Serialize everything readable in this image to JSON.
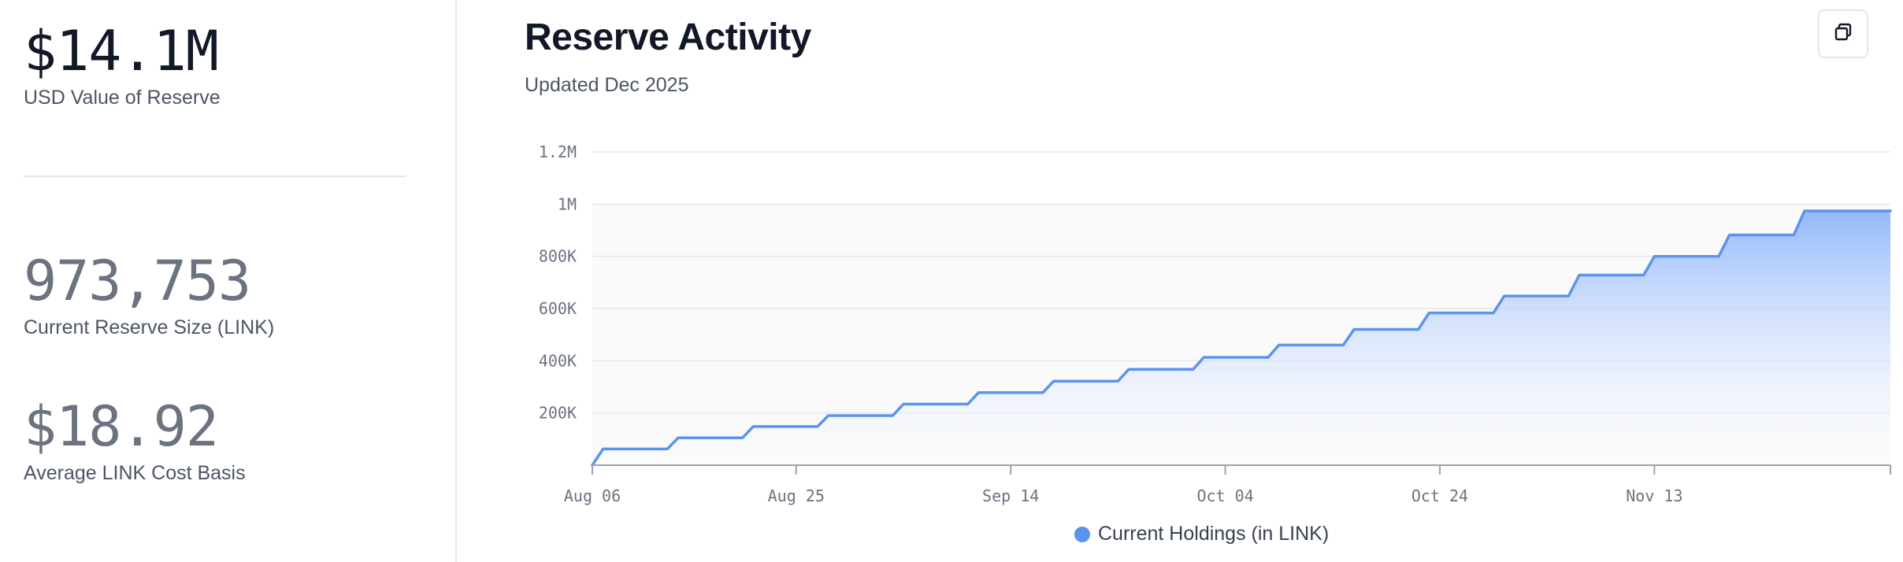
{
  "stats": [
    {
      "value": "$14.1M",
      "label": "USD Value of Reserve"
    },
    {
      "value": "973,753",
      "label": "Current Reserve Size (LINK)"
    },
    {
      "value": "$18.92",
      "label": "Average LINK Cost Basis"
    }
  ],
  "header": {
    "title": "Reserve Activity",
    "subtitle": "Updated Dec 2025"
  },
  "toolbar": {
    "copy_icon": "copy-icon"
  },
  "colors": {
    "line": "#5b94ee",
    "fill_top": "#8fb5fb",
    "fill_bottom": "#ffffff",
    "legend_dot": "#5b94ee",
    "grid": "#e5e7eb",
    "axis": "#9ca3af"
  },
  "chart_data": {
    "type": "area",
    "ylim": [
      0,
      1200000
    ],
    "yticks": [
      {
        "value": 200000,
        "label": "200K"
      },
      {
        "value": 400000,
        "label": "400K"
      },
      {
        "value": 600000,
        "label": "600K"
      },
      {
        "value": 800000,
        "label": "800K"
      },
      {
        "value": 1000000,
        "label": "1M"
      },
      {
        "value": 1200000,
        "label": "1.2M"
      }
    ],
    "xlim": [
      "2025-08-06",
      "2025-12-05"
    ],
    "xticks": [
      {
        "date": "2025-08-06",
        "label": "Aug 06"
      },
      {
        "date": "2025-08-25",
        "label": "Aug 25"
      },
      {
        "date": "2025-09-14",
        "label": "Sep 14"
      },
      {
        "date": "2025-10-04",
        "label": "Oct 04"
      },
      {
        "date": "2025-10-24",
        "label": "Oct 24"
      },
      {
        "date": "2025-11-13",
        "label": "Nov 13"
      }
    ],
    "legend": {
      "position": "bottom-center"
    },
    "grid": true,
    "series": [
      {
        "name": "Current Holdings (in LINK)",
        "points": [
          {
            "date": "2025-08-06",
            "value": 0
          },
          {
            "date": "2025-08-07",
            "value": 62000
          },
          {
            "date": "2025-08-13",
            "value": 62000
          },
          {
            "date": "2025-08-14",
            "value": 105000
          },
          {
            "date": "2025-08-20",
            "value": 105000
          },
          {
            "date": "2025-08-21",
            "value": 148000
          },
          {
            "date": "2025-08-27",
            "value": 148000
          },
          {
            "date": "2025-08-28",
            "value": 190000
          },
          {
            "date": "2025-09-03",
            "value": 190000
          },
          {
            "date": "2025-09-04",
            "value": 234000
          },
          {
            "date": "2025-09-10",
            "value": 234000
          },
          {
            "date": "2025-09-11",
            "value": 278000
          },
          {
            "date": "2025-09-17",
            "value": 278000
          },
          {
            "date": "2025-09-18",
            "value": 322000
          },
          {
            "date": "2025-09-24",
            "value": 322000
          },
          {
            "date": "2025-09-25",
            "value": 367000
          },
          {
            "date": "2025-10-01",
            "value": 367000
          },
          {
            "date": "2025-10-02",
            "value": 413000
          },
          {
            "date": "2025-10-08",
            "value": 413000
          },
          {
            "date": "2025-10-09",
            "value": 460000
          },
          {
            "date": "2025-10-15",
            "value": 460000
          },
          {
            "date": "2025-10-16",
            "value": 520000
          },
          {
            "date": "2025-10-22",
            "value": 520000
          },
          {
            "date": "2025-10-23",
            "value": 583000
          },
          {
            "date": "2025-10-29",
            "value": 583000
          },
          {
            "date": "2025-10-30",
            "value": 648000
          },
          {
            "date": "2025-11-05",
            "value": 648000
          },
          {
            "date": "2025-11-06",
            "value": 728000
          },
          {
            "date": "2025-11-12",
            "value": 728000
          },
          {
            "date": "2025-11-13",
            "value": 800000
          },
          {
            "date": "2025-11-19",
            "value": 800000
          },
          {
            "date": "2025-11-20",
            "value": 882000
          },
          {
            "date": "2025-11-26",
            "value": 882000
          },
          {
            "date": "2025-11-27",
            "value": 973753
          },
          {
            "date": "2025-12-05",
            "value": 973753
          }
        ]
      }
    ]
  }
}
